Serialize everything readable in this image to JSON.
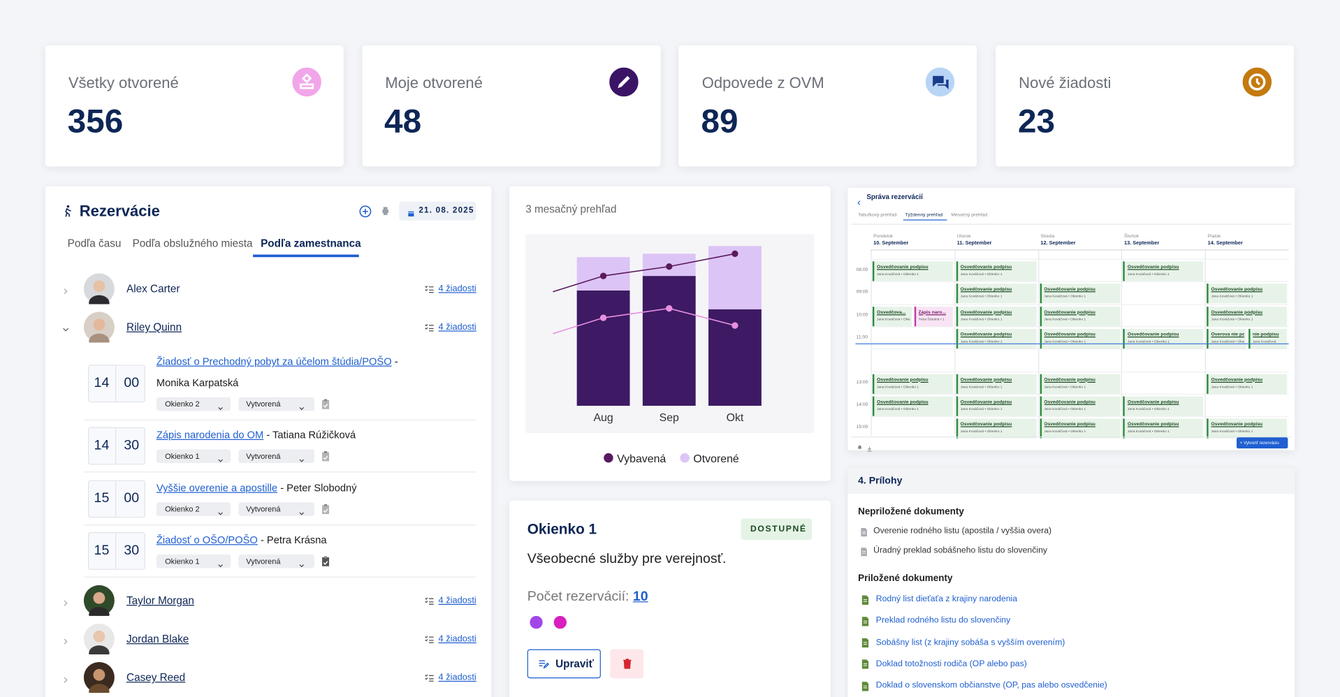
{
  "stats": [
    {
      "label": "Všetky otvorené",
      "value": 356
    },
    {
      "label": "Moje otvorené",
      "value": 48
    },
    {
      "label": "Odpovede z OVM",
      "value": 89
    },
    {
      "label": "Nové žiadosti",
      "value": 23
    }
  ],
  "reservations": {
    "title": "Rezervácie",
    "date": "21. 08. 2025",
    "tabs": [
      "Podľa času",
      "Podľa obslužného miesta",
      "Podľa zamestnanca"
    ],
    "people": [
      {
        "name": "Alex Carter",
        "requests": "4 žiadosti"
      },
      {
        "name": "Riley Quinn",
        "requests": "4 žiadosti",
        "appointments": [
          {
            "hour": "14",
            "minute": "00",
            "service": "Žiadosť o Prechodný pobyt za účelom štúdia/POŠO",
            "client": "- Monika Karpatská",
            "window": "Okienko 2",
            "status": "Vytvorená"
          },
          {
            "hour": "14",
            "minute": "30",
            "service": "Zápis narodenia do OM",
            "client": "- Tatiana Rúžičková",
            "window": "Okienko 1",
            "status": "Vytvorená"
          },
          {
            "hour": "15",
            "minute": "00",
            "service": "Vyššie overenie a apostille",
            "client": "- Peter Slobodný",
            "window": "Okienko 2",
            "status": "Vytvorená"
          },
          {
            "hour": "15",
            "minute": "30",
            "service": "Žiadosť o OŠO/POŠO",
            "client": "- Petra Krásna",
            "window": "Okienko 1",
            "status": "Vytvorená"
          }
        ]
      },
      {
        "name": "Taylor Morgan",
        "requests": "4 žiadosti"
      },
      {
        "name": "Jordan Blake",
        "requests": "4 žiadosti"
      },
      {
        "name": "Casey Reed",
        "requests": "4 žiadosti"
      }
    ]
  },
  "chart_data": {
    "type": "bar",
    "title": "3 mesačný prehľad",
    "stacked": true,
    "categories": [
      "Aug",
      "Sep",
      "Okt"
    ],
    "series": [
      {
        "name": "Vybavená",
        "color": "#3d1a63",
        "values": [
          135,
          152,
          113
        ]
      },
      {
        "name": "Otvorené",
        "color": "#dcc4f6",
        "values": [
          39,
          26,
          74
        ]
      }
    ],
    "lines": [
      {
        "color": "#5a1a5e",
        "values": [
          152,
          163,
          178
        ]
      },
      {
        "color": "#e78fe1",
        "values": [
          103,
          114,
          94
        ]
      }
    ],
    "ylim": [
      0,
      200
    ]
  },
  "window": {
    "title": "Okienko 1",
    "status": "DOSTUPNÉ",
    "description": "Všeobecné služby pre verejnosť.",
    "count_label": "Počet rezervácií:",
    "count": 10,
    "edit": "Upraviť"
  },
  "calendar": {
    "title": "Správa rezervácií",
    "tabs": [
      "Tabuľkový prehľad",
      "Týždenný prehľad",
      "Mesačný prehľad"
    ],
    "days": [
      {
        "name": "Pondelok",
        "date": "10. September"
      },
      {
        "name": "Utorok",
        "date": "11. September"
      },
      {
        "name": "Streda",
        "date": "12. September"
      },
      {
        "name": "Štvrtok",
        "date": "13. September"
      },
      {
        "name": "Piatok",
        "date": "14. September"
      }
    ],
    "hours": [
      "08:00",
      "09:00",
      "10:00",
      "11:00",
      null,
      "13:00",
      "14:00",
      "15:00"
    ],
    "slots": [
      [
        [
          {
            "title": "Osvedčovanie podpisu",
            "detail": "Jana Kováčová • Okienko 1"
          }
        ],
        null,
        [
          {
            "title": "Osvedčova...",
            "detail": "Jana Kováčová • Okienko 1"
          },
          {
            "title": "Zápis naro...",
            "detail": "Petra Šťastná • 1",
            "color": "#f8e4f5"
          }
        ],
        null,
        null,
        [
          {
            "title": "Osvedčovanie podpisu",
            "detail": "Jana Kováčová • Okienko 1"
          }
        ],
        [
          {
            "title": "Osvedčovanie podpisu",
            "detail": "Jana Kováčová • Okienko 1"
          }
        ],
        null
      ],
      [
        [
          {
            "title": "Osvedčovanie podpisu",
            "detail": "Jana Kováčová • Okienko 1"
          }
        ],
        [
          {
            "title": "Osvedčovanie podpisu",
            "detail": "Jana Kováčová • Okienko 1"
          }
        ],
        [
          {
            "title": "Osvedčovanie podpisu",
            "detail": "Jana Kováčová • Okienko 1"
          }
        ],
        [
          {
            "title": "Osvedčovanie podpisu",
            "detail": "Jana Kováčová • Okienko 1"
          }
        ],
        null,
        [
          {
            "title": "Osvedčovanie podpisu",
            "detail": "Jana Kováčová • Okienko 1"
          }
        ],
        [
          {
            "title": "Osvedčovanie podpisu",
            "detail": "Jana Kováčová • Okienko 1"
          }
        ],
        [
          {
            "title": "Osvedčovanie podpisu",
            "detail": "Jana Kováčová • Okienko 1"
          }
        ]
      ],
      [
        null,
        [
          {
            "title": "Osvedčovanie podpisu",
            "detail": "Jana Kováčová • Okienko 1"
          }
        ],
        [
          {
            "title": "Osvedčovanie podpisu",
            "detail": "Jana Kováčová • Okienko 1"
          }
        ],
        [
          {
            "title": "Osvedčovanie podpisu",
            "detail": "Jana Kováčová • Okienko 1"
          }
        ],
        null,
        [
          {
            "title": "Osvedčovanie podpisu",
            "detail": "Jana Kováčová • Okienko 1"
          }
        ],
        [
          {
            "title": "Osvedčovanie podpisu",
            "detail": "Jana Kováčová • Okienko 1"
          }
        ],
        [
          {
            "title": "Osvedčovanie podpisu",
            "detail": "Jana Kováčová • Okienko 1"
          }
        ]
      ],
      [
        [
          {
            "title": "Osvedčovanie podpisu",
            "detail": "Jana Kováčová • Okienko 1"
          }
        ],
        null,
        null,
        [
          {
            "title": "Osvedčovanie podpisu",
            "detail": "Jana Kováčová • Okienko 1"
          }
        ],
        null,
        null,
        [
          {
            "title": "Osvedčovanie podpisu",
            "detail": "Jana Kováčová • Okienko 1"
          }
        ],
        [
          {
            "title": "Osvedčovanie podpisu",
            "detail": "Jana Kováčová • Okienko 1"
          }
        ]
      ],
      [
        null,
        [
          {
            "title": "Osvedčovanie podpisu",
            "detail": "Jana Kováčová • Okienko 1"
          }
        ],
        [
          {
            "title": "Osvedčovanie podpisu",
            "detail": "Jana Kováčová • Okienko 1"
          }
        ],
        [
          {
            "title": "Overova nie podpisu",
            "detail": "Jana Kováčová • Okienko 1"
          },
          {
            "title": "nie podpisu",
            "detail": "Jana Kováčová"
          }
        ],
        null,
        [
          {
            "title": "Osvedčovanie podpisu",
            "detail": "Jana Kováčová • Okienko 1"
          }
        ],
        null,
        [
          {
            "title": "Osvedčovanie podpisu",
            "detail": "Jana Kováčová • Okienko 1"
          }
        ]
      ]
    ],
    "create": "+ Vytvoriť rezerváciu"
  },
  "attachments": {
    "title": "4. Prílohy",
    "missing_title": "Nepriložené dokumenty",
    "missing": [
      "Overenie rodného listu (apostila / vyššia overa)",
      "Úradný preklad sobášneho listu do slovenčiny"
    ],
    "attached_title": "Priložené dokumenty",
    "attached": [
      "Rodný list dieťaťa z krajiny narodenia",
      "Preklad rodného listu do slovenčiny",
      "Sobášny list (z krajiny sobáša s vyšším overením)",
      "Doklad totožnosti rodiča (OP alebo pas)",
      "Doklad o slovenskom občianstve (OP, pas alebo osvedčenie)"
    ]
  }
}
